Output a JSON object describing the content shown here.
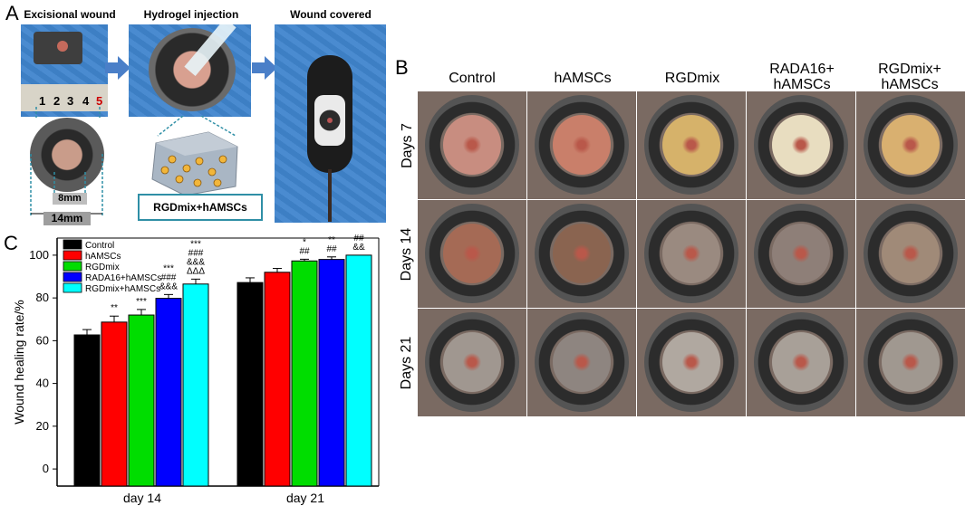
{
  "panel_a": {
    "letter": "A",
    "steps": [
      "Excisional wound",
      "Hydrogel injection",
      "Wound covered"
    ],
    "ruler_numbers": [
      "1",
      "2",
      "3",
      "4",
      "5"
    ],
    "dim_small": "8mm",
    "dim_large": "14mm",
    "hydrogel_label": "RGDmix+hAMSCs",
    "colors": {
      "arrow": "#4a7fc8",
      "drape": "#3d7fc4",
      "callout": "#2f8fa6"
    }
  },
  "panel_b": {
    "letter": "B",
    "columns": [
      "Control",
      "hAMSCs",
      "RGDmix",
      "RADA16+\nhAMSCs",
      "RGDmix+\nhAMSCs"
    ],
    "rows": [
      "Days 7",
      "Days 14",
      "Days 21"
    ]
  },
  "panel_c": {
    "letter": "C"
  },
  "chart_data": {
    "type": "bar",
    "ylabel": "Wound healing rate/%",
    "xlabel": "",
    "categories": [
      "day 14",
      "day 21"
    ],
    "ylim": [
      0,
      100
    ],
    "yticks": [
      0,
      20,
      40,
      60,
      80,
      100
    ],
    "legend_position": "top-left",
    "series": [
      {
        "name": "Control",
        "color": "#000000",
        "values": [
          62.7,
          87.2
        ],
        "errors": [
          2.5,
          2.2
        ],
        "annotations": [
          "",
          ""
        ]
      },
      {
        "name": "hAMSCs",
        "color": "#ff0000",
        "values": [
          68.7,
          92.0
        ],
        "errors": [
          2.8,
          1.8
        ],
        "annotations": [
          "**",
          ""
        ]
      },
      {
        "name": "RGDmix",
        "color": "#00dd00",
        "values": [
          72.0,
          97.3
        ],
        "errors": [
          2.6,
          0.8
        ],
        "annotations": [
          "***",
          "*\n##"
        ]
      },
      {
        "name": "RADA16+hAMSCs",
        "color": "#0000ff",
        "values": [
          79.8,
          98.0
        ],
        "errors": [
          1.8,
          1.2
        ],
        "annotations": [
          "***\n###\n&&&",
          "**\n##"
        ]
      },
      {
        "name": "RGDmix+hAMSCs",
        "color": "#00ffff",
        "values": [
          86.5,
          100.0
        ],
        "errors": [
          2.3,
          0.0
        ],
        "annotations": [
          "***\n###\n&&&\nΔΔΔ",
          "**\n##\n&&"
        ]
      }
    ]
  }
}
